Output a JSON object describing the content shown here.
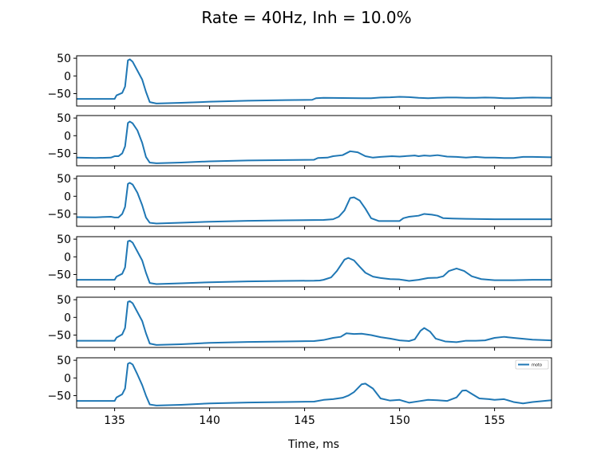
{
  "chart_data": {
    "type": "line",
    "title": "Rate = 40Hz, Inh = 10.0%",
    "xlabel": "Time, ms",
    "ylabel": "",
    "xlim": [
      133,
      158
    ],
    "ylim": [
      -85,
      57
    ],
    "x_ticks": [
      135,
      140,
      145,
      150,
      155
    ],
    "y_ticks": [
      50,
      0,
      -50
    ],
    "legend": {
      "label": "moto",
      "placement": "upper right",
      "panel": 6
    },
    "line_color": "#1f77b4",
    "panels": [
      {
        "name": "moto",
        "points": [
          [
            133,
            -65
          ],
          [
            135,
            -65
          ],
          [
            135.1,
            -55
          ],
          [
            135.4,
            -48
          ],
          [
            135.55,
            -30
          ],
          [
            135.7,
            44
          ],
          [
            135.8,
            47
          ],
          [
            135.95,
            40
          ],
          [
            136.2,
            15
          ],
          [
            136.45,
            -10
          ],
          [
            136.65,
            -45
          ],
          [
            136.85,
            -74
          ],
          [
            137.2,
            -78
          ],
          [
            138.5,
            -76
          ],
          [
            140,
            -73
          ],
          [
            142,
            -70
          ],
          [
            144,
            -68.5
          ],
          [
            145.4,
            -67.5
          ],
          [
            145.6,
            -63
          ],
          [
            146,
            -62
          ],
          [
            147,
            -62.5
          ],
          [
            148,
            -63
          ],
          [
            148.5,
            -63
          ],
          [
            149,
            -61
          ],
          [
            149.5,
            -60.5
          ],
          [
            150,
            -59
          ],
          [
            150.5,
            -60
          ],
          [
            151,
            -62
          ],
          [
            151.5,
            -63
          ],
          [
            152,
            -62
          ],
          [
            152.5,
            -61
          ],
          [
            153,
            -61
          ],
          [
            153.5,
            -62
          ],
          [
            154,
            -62
          ],
          [
            154.5,
            -61
          ],
          [
            155,
            -61.5
          ],
          [
            155.5,
            -63
          ],
          [
            156,
            -63
          ],
          [
            156.5,
            -61.5
          ],
          [
            157,
            -61
          ],
          [
            157.5,
            -61.5
          ],
          [
            158,
            -62
          ]
        ]
      },
      {
        "name": "moto",
        "points": [
          [
            133,
            -62
          ],
          [
            134,
            -63
          ],
          [
            134.8,
            -62
          ],
          [
            135,
            -58
          ],
          [
            135.2,
            -58
          ],
          [
            135.4,
            -50
          ],
          [
            135.55,
            -30
          ],
          [
            135.7,
            36
          ],
          [
            135.8,
            40
          ],
          [
            135.95,
            35
          ],
          [
            136.2,
            15
          ],
          [
            136.45,
            -20
          ],
          [
            136.65,
            -60
          ],
          [
            136.85,
            -76
          ],
          [
            137.2,
            -78
          ],
          [
            138.5,
            -76
          ],
          [
            140,
            -72.5
          ],
          [
            142,
            -70
          ],
          [
            144,
            -69
          ],
          [
            145.5,
            -68
          ],
          [
            145.7,
            -63
          ],
          [
            146.2,
            -62
          ],
          [
            146.5,
            -58
          ],
          [
            147,
            -55
          ],
          [
            147.4,
            -44
          ],
          [
            147.8,
            -47
          ],
          [
            148.2,
            -58
          ],
          [
            148.6,
            -62
          ],
          [
            149,
            -60
          ],
          [
            149.6,
            -58
          ],
          [
            150,
            -59
          ],
          [
            150.5,
            -57
          ],
          [
            150.8,
            -56
          ],
          [
            151,
            -58
          ],
          [
            151.3,
            -56
          ],
          [
            151.6,
            -57
          ],
          [
            152,
            -55
          ],
          [
            152.5,
            -59
          ],
          [
            153,
            -60
          ],
          [
            153.5,
            -62
          ],
          [
            154,
            -60
          ],
          [
            154.5,
            -62
          ],
          [
            155,
            -62
          ],
          [
            155.5,
            -63
          ],
          [
            156,
            -63
          ],
          [
            156.5,
            -60
          ],
          [
            157,
            -60
          ],
          [
            158,
            -61
          ]
        ]
      },
      {
        "name": "moto",
        "points": [
          [
            133,
            -59
          ],
          [
            134,
            -59.5
          ],
          [
            134.8,
            -58
          ],
          [
            135,
            -60
          ],
          [
            135.2,
            -60
          ],
          [
            135.4,
            -50
          ],
          [
            135.55,
            -30
          ],
          [
            135.7,
            35
          ],
          [
            135.8,
            38
          ],
          [
            135.95,
            33
          ],
          [
            136.2,
            10
          ],
          [
            136.45,
            -25
          ],
          [
            136.65,
            -60
          ],
          [
            136.85,
            -75
          ],
          [
            137.2,
            -77
          ],
          [
            138.5,
            -75
          ],
          [
            140,
            -72
          ],
          [
            142,
            -69.5
          ],
          [
            144,
            -68
          ],
          [
            146,
            -67
          ],
          [
            146.5,
            -65
          ],
          [
            146.8,
            -58
          ],
          [
            147.1,
            -40
          ],
          [
            147.4,
            -5
          ],
          [
            147.6,
            -3
          ],
          [
            147.9,
            -12
          ],
          [
            148.2,
            -35
          ],
          [
            148.5,
            -62
          ],
          [
            148.9,
            -70
          ],
          [
            149.5,
            -70
          ],
          [
            150,
            -70
          ],
          [
            150.2,
            -62
          ],
          [
            150.5,
            -58
          ],
          [
            151,
            -55
          ],
          [
            151.3,
            -50
          ],
          [
            151.7,
            -52
          ],
          [
            152,
            -55
          ],
          [
            152.3,
            -62
          ],
          [
            152.8,
            -63
          ],
          [
            153.5,
            -64
          ],
          [
            155,
            -65
          ],
          [
            156.5,
            -65
          ],
          [
            158,
            -65
          ]
        ]
      },
      {
        "name": "moto",
        "points": [
          [
            133,
            -65
          ],
          [
            135,
            -65
          ],
          [
            135.1,
            -56
          ],
          [
            135.4,
            -48
          ],
          [
            135.55,
            -30
          ],
          [
            135.7,
            44
          ],
          [
            135.8,
            46
          ],
          [
            135.95,
            40
          ],
          [
            136.2,
            15
          ],
          [
            136.45,
            -10
          ],
          [
            136.65,
            -45
          ],
          [
            136.85,
            -74
          ],
          [
            137.2,
            -77
          ],
          [
            138.5,
            -75
          ],
          [
            140,
            -72
          ],
          [
            142,
            -69.5
          ],
          [
            144,
            -68
          ],
          [
            145.5,
            -67.5
          ],
          [
            145.8,
            -67
          ],
          [
            146,
            -65
          ],
          [
            146.4,
            -58
          ],
          [
            146.7,
            -40
          ],
          [
            147.1,
            -8
          ],
          [
            147.3,
            -3
          ],
          [
            147.6,
            -10
          ],
          [
            147.9,
            -28
          ],
          [
            148.2,
            -45
          ],
          [
            148.6,
            -56
          ],
          [
            149,
            -60
          ],
          [
            149.5,
            -63
          ],
          [
            150,
            -64
          ],
          [
            150.5,
            -68
          ],
          [
            151,
            -65
          ],
          [
            151.5,
            -60
          ],
          [
            152,
            -59
          ],
          [
            152.3,
            -55
          ],
          [
            152.6,
            -40
          ],
          [
            153,
            -33
          ],
          [
            153.4,
            -40
          ],
          [
            153.8,
            -55
          ],
          [
            154.3,
            -63
          ],
          [
            155,
            -66
          ],
          [
            156,
            -66
          ],
          [
            157,
            -65
          ],
          [
            158,
            -65
          ]
        ]
      },
      {
        "name": "moto",
        "points": [
          [
            133,
            -66
          ],
          [
            135,
            -66
          ],
          [
            135.1,
            -57
          ],
          [
            135.4,
            -48
          ],
          [
            135.55,
            -30
          ],
          [
            135.7,
            44
          ],
          [
            135.8,
            46
          ],
          [
            135.95,
            40
          ],
          [
            136.2,
            15
          ],
          [
            136.45,
            -10
          ],
          [
            136.65,
            -45
          ],
          [
            136.85,
            -74
          ],
          [
            137.2,
            -78
          ],
          [
            138.5,
            -76
          ],
          [
            140,
            -72
          ],
          [
            142,
            -69.5
          ],
          [
            144,
            -68
          ],
          [
            145.5,
            -67
          ],
          [
            146,
            -64
          ],
          [
            146.5,
            -58
          ],
          [
            146.9,
            -55
          ],
          [
            147.2,
            -45
          ],
          [
            147.6,
            -47
          ],
          [
            148,
            -46
          ],
          [
            148.5,
            -50
          ],
          [
            149,
            -56
          ],
          [
            149.5,
            -60
          ],
          [
            150,
            -65
          ],
          [
            150.5,
            -67
          ],
          [
            150.8,
            -62
          ],
          [
            151.1,
            -38
          ],
          [
            151.3,
            -30
          ],
          [
            151.6,
            -40
          ],
          [
            151.9,
            -60
          ],
          [
            152.4,
            -68
          ],
          [
            153,
            -70
          ],
          [
            153.5,
            -66
          ],
          [
            154,
            -66
          ],
          [
            154.5,
            -65
          ],
          [
            155,
            -58
          ],
          [
            155.5,
            -55
          ],
          [
            156,
            -58
          ],
          [
            157,
            -63
          ],
          [
            158,
            -65
          ]
        ]
      },
      {
        "name": "moto",
        "points": [
          [
            133,
            -65
          ],
          [
            135,
            -65
          ],
          [
            135.1,
            -55
          ],
          [
            135.4,
            -46
          ],
          [
            135.55,
            -30
          ],
          [
            135.7,
            40
          ],
          [
            135.8,
            43
          ],
          [
            135.95,
            38
          ],
          [
            136.2,
            10
          ],
          [
            136.45,
            -20
          ],
          [
            136.65,
            -50
          ],
          [
            136.85,
            -75
          ],
          [
            137.2,
            -78
          ],
          [
            138.5,
            -76
          ],
          [
            140,
            -72
          ],
          [
            142,
            -69.5
          ],
          [
            144,
            -68
          ],
          [
            145.5,
            -67
          ],
          [
            146,
            -62
          ],
          [
            146.5,
            -60
          ],
          [
            147,
            -56
          ],
          [
            147.3,
            -50
          ],
          [
            147.6,
            -40
          ],
          [
            148,
            -18
          ],
          [
            148.2,
            -16
          ],
          [
            148.6,
            -30
          ],
          [
            149,
            -58
          ],
          [
            149.5,
            -64
          ],
          [
            150,
            -62
          ],
          [
            150.5,
            -70
          ],
          [
            151,
            -66
          ],
          [
            151.5,
            -62
          ],
          [
            152,
            -63
          ],
          [
            152.5,
            -65
          ],
          [
            153,
            -55
          ],
          [
            153.3,
            -36
          ],
          [
            153.5,
            -35
          ],
          [
            153.8,
            -45
          ],
          [
            154.2,
            -58
          ],
          [
            154.7,
            -60
          ],
          [
            155,
            -62
          ],
          [
            155.5,
            -60
          ],
          [
            156,
            -68
          ],
          [
            156.5,
            -72
          ],
          [
            157,
            -68
          ],
          [
            158,
            -63
          ]
        ]
      }
    ]
  }
}
